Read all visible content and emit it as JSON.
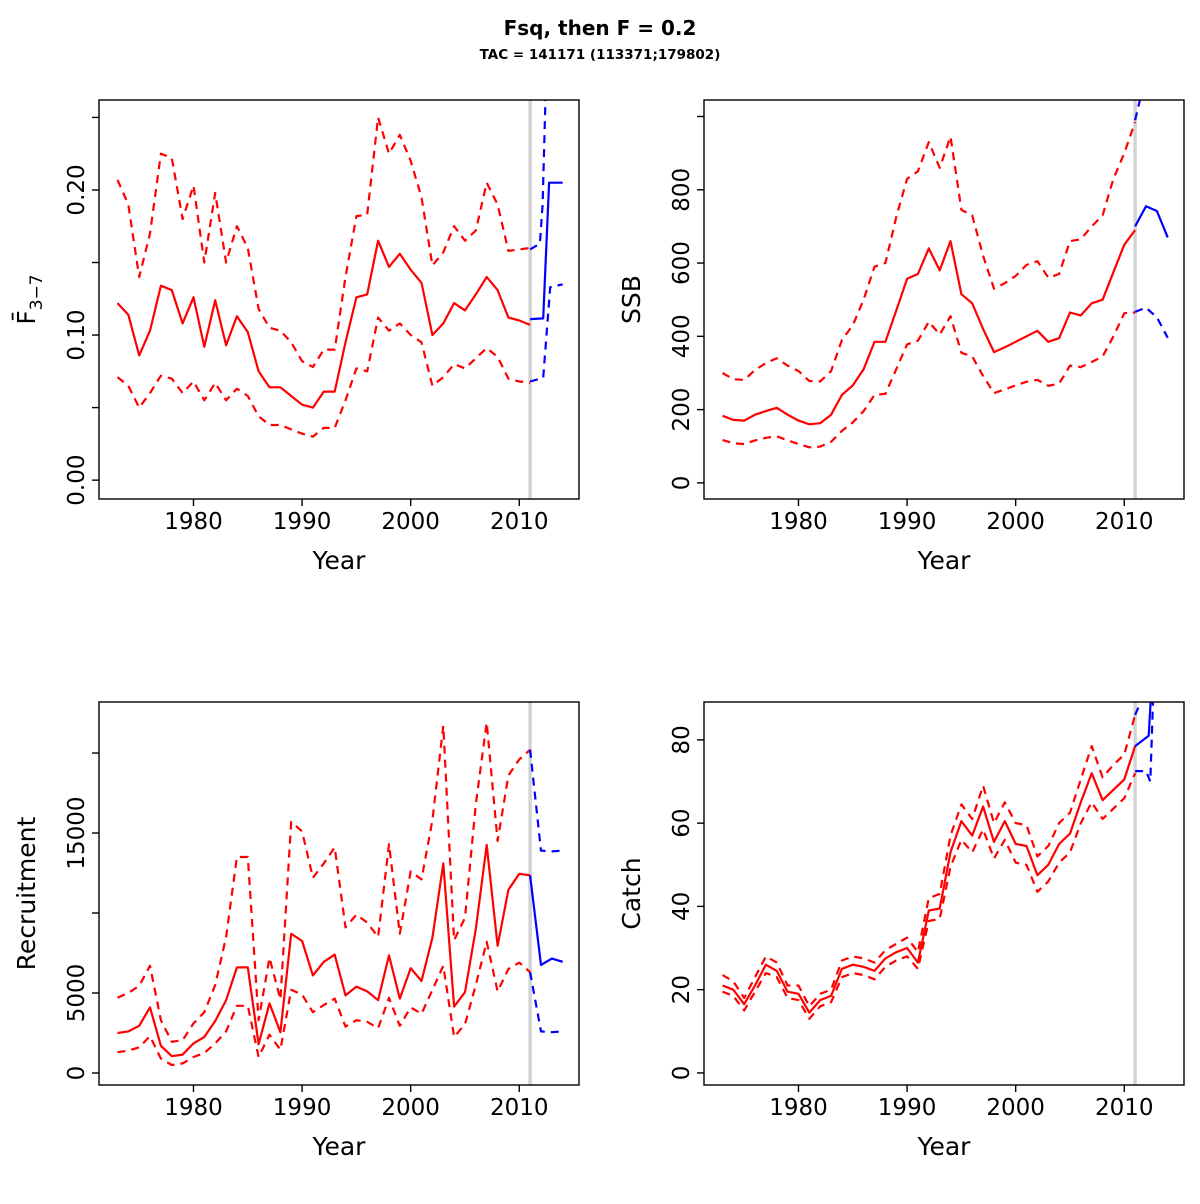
{
  "title": "Fsq, then F = 0.2",
  "subtitle": "TAC = 141171 (113371;179802)",
  "colors": {
    "history": "#ff0000",
    "forecast": "#0000ff",
    "assessment_year_line": "#d3d3d3",
    "panel_border": "#000000"
  },
  "chart_data": [
    {
      "id": "fbar",
      "type": "line",
      "ylabel_main": "F̄",
      "ylabel_sub": "3−7",
      "xlabel": "Year",
      "xlim": [
        1971.3,
        2015.5
      ],
      "ylim": [
        -0.013,
        0.262
      ],
      "x_ticks": {
        "values": [
          1980,
          1990,
          2000,
          2010
        ],
        "labels": [
          "1980",
          "1990",
          "2000",
          "2010"
        ]
      },
      "y_ticks": {
        "values": [
          0,
          0.05,
          0.1,
          0.15,
          0.2,
          0.25
        ],
        "labels": [
          "0.00",
          "",
          "0.10",
          "",
          "0.20",
          ""
        ]
      },
      "vline_year": 2011,
      "series": [
        {
          "name": "ci-upper",
          "color": "#ff0000",
          "dash": true,
          "x_start": 1973,
          "values": [
            0.207,
            0.19,
            0.14,
            0.17,
            0.225,
            0.222,
            0.18,
            0.203,
            0.15,
            0.198,
            0.15,
            0.175,
            0.16,
            0.118,
            0.105,
            0.103,
            0.095,
            0.082,
            0.078,
            0.09,
            0.09,
            0.14,
            0.182,
            0.183,
            0.25,
            0.225,
            0.238,
            0.22,
            0.195,
            0.148,
            0.157,
            0.175,
            0.165,
            0.172,
            0.205,
            0.19,
            0.158,
            0.159,
            0.16
          ]
        },
        {
          "name": "median",
          "color": "#ff0000",
          "dash": false,
          "x_start": 1973,
          "values": [
            0.122,
            0.114,
            0.086,
            0.103,
            0.134,
            0.131,
            0.108,
            0.126,
            0.092,
            0.124,
            0.093,
            0.113,
            0.102,
            0.075,
            0.064,
            0.064,
            0.058,
            0.052,
            0.05,
            0.061,
            0.061,
            0.095,
            0.126,
            0.128,
            0.165,
            0.147,
            0.156,
            0.145,
            0.136,
            0.1,
            0.108,
            0.122,
            0.117,
            0.128,
            0.14,
            0.131,
            0.112,
            0.11,
            0.107
          ]
        },
        {
          "name": "ci-lower",
          "color": "#ff0000",
          "dash": true,
          "x_start": 1973,
          "values": [
            0.071,
            0.065,
            0.05,
            0.06,
            0.072,
            0.07,
            0.06,
            0.068,
            0.055,
            0.067,
            0.055,
            0.063,
            0.058,
            0.044,
            0.038,
            0.038,
            0.035,
            0.032,
            0.03,
            0.036,
            0.036,
            0.055,
            0.077,
            0.075,
            0.112,
            0.103,
            0.108,
            0.1,
            0.095,
            0.065,
            0.071,
            0.08,
            0.077,
            0.084,
            0.091,
            0.085,
            0.07,
            0.068,
            0.067
          ]
        },
        {
          "name": "forecast-upper",
          "color": "#0000ff",
          "dash": true,
          "x": [
            2011,
            2011.9,
            2012.15,
            2012.6
          ],
          "values": [
            0.159,
            0.163,
            0.19,
            0.315
          ]
        },
        {
          "name": "forecast-median",
          "color": "#0000ff",
          "dash": false,
          "x": [
            2011,
            2012.2,
            2012.75,
            2014
          ],
          "values": [
            0.111,
            0.1115,
            0.205,
            0.205
          ]
        },
        {
          "name": "forecast-lower",
          "color": "#0000ff",
          "dash": true,
          "x": [
            2011,
            2012.2,
            2012.85,
            2014
          ],
          "values": [
            0.068,
            0.0705,
            0.133,
            0.135
          ]
        }
      ]
    },
    {
      "id": "ssb",
      "type": "line",
      "ylabel": "SSB",
      "xlabel": "Year",
      "xlim": [
        1971.3,
        2015.5
      ],
      "ylim": [
        -44,
        1045
      ],
      "x_ticks": {
        "values": [
          1980,
          1990,
          2000,
          2010
        ],
        "labels": [
          "1980",
          "1990",
          "2000",
          "2010"
        ]
      },
      "y_ticks": {
        "values": [
          0,
          200,
          400,
          600,
          800,
          1000
        ],
        "labels": [
          "0",
          "200",
          "400",
          "600",
          "800",
          ""
        ]
      },
      "vline_year": 2011,
      "series": [
        {
          "name": "ci-upper",
          "color": "#ff0000",
          "dash": true,
          "x_start": 1973,
          "values": [
            300,
            283,
            281,
            308,
            327,
            340,
            320,
            305,
            278,
            277,
            305,
            390,
            430,
            500,
            590,
            600,
            725,
            830,
            850,
            930,
            860,
            945,
            745,
            730,
            620,
            530,
            545,
            565,
            595,
            605,
            560,
            570,
            660,
            665,
            700,
            730,
            830,
            900,
            985
          ]
        },
        {
          "name": "median",
          "color": "#ff0000",
          "dash": false,
          "x_start": 1973,
          "values": [
            183,
            172,
            170,
            186,
            196,
            205,
            186,
            170,
            160,
            163,
            186,
            240,
            266,
            310,
            385,
            385,
            470,
            557,
            570,
            640,
            580,
            660,
            515,
            490,
            420,
            357,
            370,
            385,
            400,
            415,
            385,
            395,
            465,
            457,
            490,
            500,
            575,
            650,
            690
          ]
        },
        {
          "name": "ci-lower",
          "color": "#ff0000",
          "dash": true,
          "x_start": 1973,
          "values": [
            117,
            108,
            106,
            116,
            123,
            127,
            116,
            106,
            97,
            99,
            112,
            142,
            165,
            196,
            240,
            243,
            310,
            378,
            388,
            440,
            405,
            455,
            355,
            345,
            292,
            245,
            255,
            266,
            276,
            281,
            265,
            271,
            320,
            316,
            330,
            345,
            400,
            463,
            465
          ]
        },
        {
          "name": "forecast-upper",
          "color": "#0000ff",
          "dash": true,
          "x": [
            2011,
            2011.8
          ],
          "values": [
            990,
            1090
          ]
        },
        {
          "name": "forecast-median",
          "color": "#0000ff",
          "dash": false,
          "x": [
            2011,
            2012,
            2013,
            2014
          ],
          "values": [
            700,
            755,
            742,
            670
          ]
        },
        {
          "name": "forecast-lower",
          "color": "#0000ff",
          "dash": true,
          "x": [
            2011,
            2012,
            2013,
            2014
          ],
          "values": [
            467,
            478,
            452,
            396
          ]
        }
      ]
    },
    {
      "id": "recruitment",
      "type": "line",
      "ylabel": "Recruitment",
      "xlabel": "Year",
      "xlim": [
        1971.3,
        2015.5
      ],
      "ylim": [
        -750,
        23190
      ],
      "x_ticks": {
        "values": [
          1980,
          1990,
          2000,
          2010
        ],
        "labels": [
          "1980",
          "1990",
          "2000",
          "2010"
        ]
      },
      "y_ticks": {
        "values": [
          0,
          5000,
          10000,
          15000,
          20000
        ],
        "labels": [
          "0",
          "5000",
          "",
          "15000",
          ""
        ]
      },
      "vline_year": 2011,
      "series": [
        {
          "name": "ci-upper",
          "color": "#ff0000",
          "dash": true,
          "x_start": 1973,
          "values": [
            4700,
            5000,
            5450,
            6700,
            3300,
            1950,
            2050,
            3100,
            3800,
            5500,
            8500,
            13500,
            13500,
            3300,
            7200,
            4600,
            15700,
            15100,
            12200,
            13100,
            14100,
            9100,
            9900,
            9400,
            8500,
            14300,
            8700,
            12600,
            12100,
            15800,
            21700,
            8300,
            9700,
            16800,
            21900,
            14500,
            18600,
            19600,
            20200
          ]
        },
        {
          "name": "median",
          "color": "#ff0000",
          "dash": false,
          "x_start": 1973,
          "values": [
            2500,
            2600,
            2950,
            4100,
            1700,
            1050,
            1150,
            1850,
            2250,
            3250,
            4550,
            6600,
            6600,
            1800,
            4350,
            2550,
            8700,
            8250,
            6100,
            6950,
            7400,
            4850,
            5400,
            5100,
            4550,
            7350,
            4650,
            6550,
            5750,
            8450,
            13100,
            4150,
            5050,
            9000,
            14250,
            7950,
            11450,
            12450,
            12350
          ]
        },
        {
          "name": "ci-lower",
          "color": "#ff0000",
          "dash": true,
          "x_start": 1973,
          "values": [
            1300,
            1400,
            1600,
            2300,
            900,
            500,
            600,
            1000,
            1250,
            1850,
            2600,
            4200,
            4200,
            1000,
            2400,
            1450,
            5200,
            4900,
            3800,
            4250,
            4650,
            2900,
            3300,
            3200,
            2800,
            4700,
            2950,
            4100,
            3700,
            5200,
            6700,
            2250,
            3050,
            5500,
            8200,
            5100,
            6500,
            6900,
            6300
          ]
        },
        {
          "name": "forecast-upper",
          "color": "#0000ff",
          "dash": true,
          "x": [
            2011,
            2012,
            2013,
            2014
          ],
          "values": [
            20200,
            13900,
            13850,
            13900
          ]
        },
        {
          "name": "forecast-median",
          "color": "#0000ff",
          "dash": false,
          "x": [
            2011,
            2012,
            2013,
            2014
          ],
          "values": [
            12350,
            6750,
            7150,
            6950
          ]
        },
        {
          "name": "forecast-lower",
          "color": "#0000ff",
          "dash": true,
          "x": [
            2011,
            2012,
            2013,
            2014
          ],
          "values": [
            6300,
            2600,
            2550,
            2600
          ]
        }
      ]
    },
    {
      "id": "catch",
      "type": "line",
      "ylabel": "Catch",
      "xlabel": "Year",
      "xlim": [
        1971.3,
        2015.5
      ],
      "ylim": [
        -2.9,
        89.1
      ],
      "x_ticks": {
        "values": [
          1980,
          1990,
          2000,
          2010
        ],
        "labels": [
          "1980",
          "1990",
          "2000",
          "2010"
        ]
      },
      "y_ticks": {
        "values": [
          0,
          20,
          40,
          60,
          80
        ],
        "labels": [
          "0",
          "20",
          "40",
          "60",
          "80"
        ]
      },
      "vline_year": 2011,
      "series": [
        {
          "name": "ci-upper",
          "color": "#ff0000",
          "dash": true,
          "x_start": 1973,
          "values": [
            23.5,
            22,
            18,
            23,
            28,
            26.5,
            21,
            21,
            16,
            19,
            20,
            27,
            28,
            27.5,
            26.5,
            29.5,
            31,
            32.5,
            29,
            42,
            43,
            57,
            64.5,
            61,
            69,
            60,
            65,
            60,
            59.5,
            52,
            54.5,
            60,
            62.5,
            70.5,
            78.5,
            71,
            74,
            76.5,
            86
          ]
        },
        {
          "name": "median",
          "color": "#ff0000",
          "dash": false,
          "x_start": 1973,
          "values": [
            21,
            20,
            16.5,
            21,
            26,
            24.5,
            19.5,
            19,
            14.5,
            17.5,
            18.5,
            25,
            26,
            25.5,
            24.5,
            27.5,
            29,
            30,
            26.5,
            39,
            39.5,
            53,
            60.5,
            57,
            64,
            55.5,
            60.5,
            55,
            54.5,
            47.5,
            50,
            55,
            57.5,
            65,
            72,
            65.5,
            68,
            70.5,
            78.5
          ]
        },
        {
          "name": "ci-lower",
          "color": "#ff0000",
          "dash": true,
          "x_start": 1973,
          "values": [
            19.5,
            18.5,
            15,
            19.5,
            24,
            23,
            18,
            17.5,
            13,
            16,
            17,
            23,
            24,
            23.5,
            22.5,
            25.5,
            27,
            28,
            25,
            36.5,
            37,
            49.5,
            56,
            53,
            58.5,
            51.5,
            56,
            50.5,
            50,
            43.5,
            46,
            50.5,
            53,
            60,
            65,
            61,
            63.5,
            66,
            72
          ]
        },
        {
          "name": "forecast-upper",
          "color": "#0000ff",
          "dash": true,
          "x": [
            2011,
            2011.5,
            2011.8
          ],
          "values": [
            86,
            89,
            99
          ]
        },
        {
          "name": "forecast-median",
          "color": "#0000ff",
          "dash": false,
          "x": [
            2011,
            2012,
            2012.25,
            2012.6
          ],
          "values": [
            78.5,
            80.5,
            81,
            97
          ]
        },
        {
          "name": "forecast-lower",
          "color": "#0000ff",
          "dash": true,
          "x": [
            2011,
            2012,
            2012.4,
            2012.75
          ],
          "values": [
            72.5,
            72.5,
            70,
            97
          ]
        }
      ]
    }
  ]
}
